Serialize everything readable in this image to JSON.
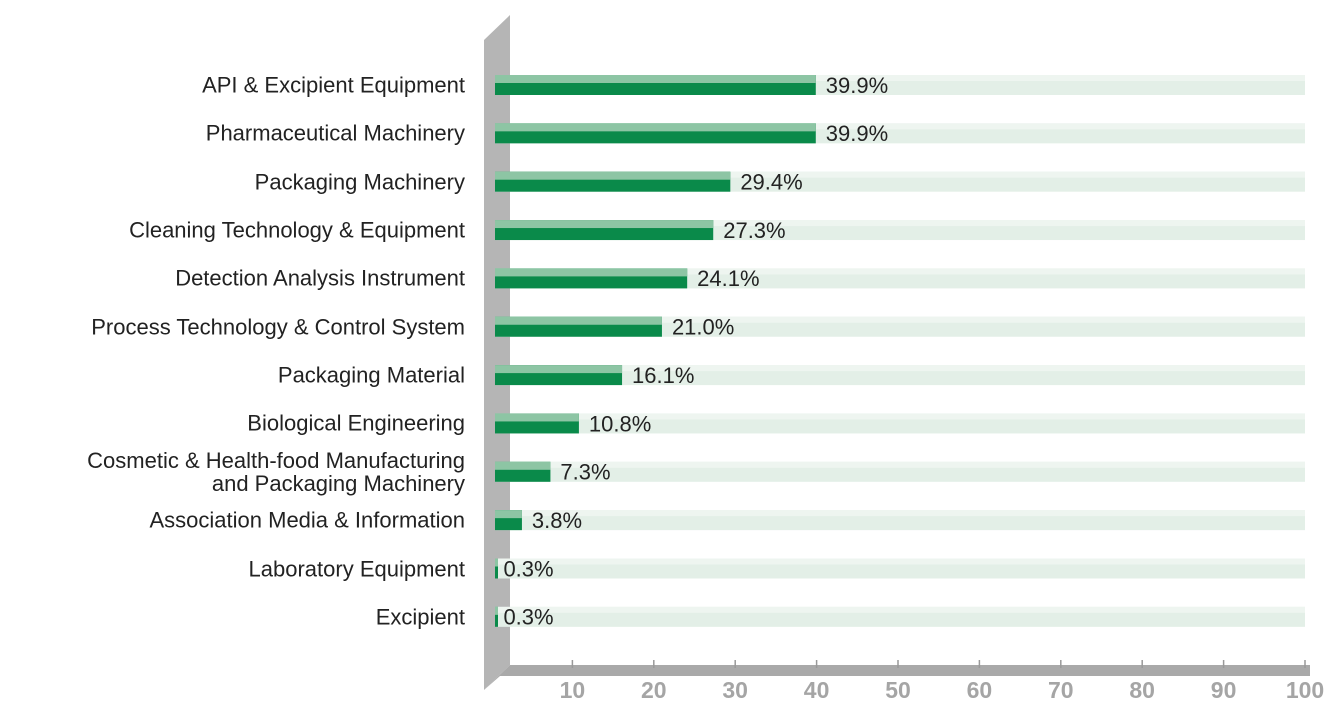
{
  "chart_data": {
    "type": "bar",
    "orientation": "horizontal",
    "categories": [
      "API & Excipient Equipment",
      "Pharmaceutical Machinery",
      "Packaging Machinery",
      "Cleaning Technology & Equipment",
      "Detection Analysis Instrument",
      "Process Technology & Control System",
      "Packaging Material",
      "Biological Engineering",
      "Cosmetic & Health-food Manufacturing\nand Packaging Machinery",
      "Association Media & Information",
      "Laboratory Equipment",
      "Excipient"
    ],
    "values": [
      39.9,
      39.9,
      29.4,
      27.3,
      24.1,
      21.0,
      16.1,
      10.8,
      7.3,
      3.8,
      0.3,
      0.3
    ],
    "value_labels": [
      "39.9%",
      "39.9%",
      "29.4%",
      "27.3%",
      "24.1%",
      "21.0%",
      "16.1%",
      "10.8%",
      "7.3%",
      "3.8%",
      "0.3%",
      "0.3%"
    ],
    "color": "#0a8a4a",
    "xlim": [
      0,
      100
    ],
    "xticks": [
      10,
      20,
      30,
      40,
      50,
      60,
      70,
      80,
      90,
      100
    ]
  }
}
